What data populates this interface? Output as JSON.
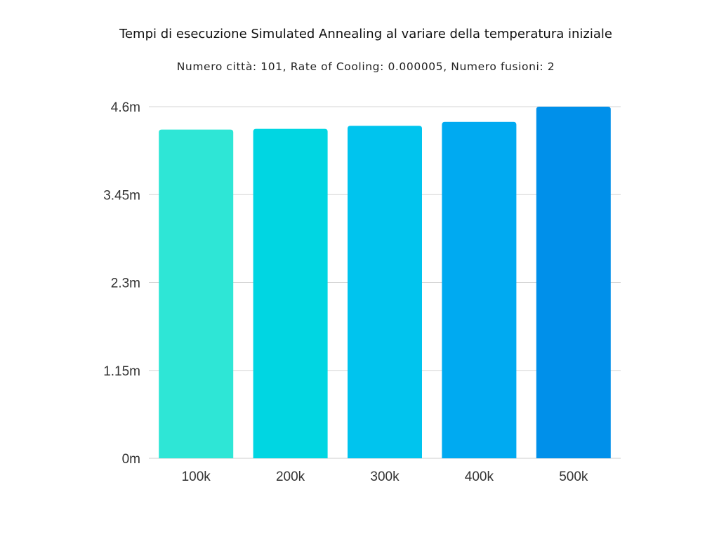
{
  "chart_data": {
    "type": "bar",
    "title": "Tempi di esecuzione Simulated Annealing al variare della temperatura iniziale",
    "subtitle": "Numero città: 101, Rate of Cooling: 0.000005, Numero fusioni: 2",
    "xlabel": "",
    "ylabel": "",
    "categories": [
      "100k",
      "200k",
      "300k",
      "400k",
      "500k"
    ],
    "values": [
      4.3,
      4.31,
      4.35,
      4.4,
      4.6
    ],
    "unit": "m",
    "ylim": [
      0,
      4.6
    ],
    "yticks": [
      0,
      1.15,
      2.3,
      3.45,
      4.6
    ],
    "ytick_labels": [
      "0m",
      "1.15m",
      "2.3m",
      "3.45m",
      "4.6m"
    ],
    "grid": true,
    "legend": "none",
    "colors": [
      "#2ee6d6",
      "#00d6e2",
      "#00c4ee",
      "#00aaf1",
      "#0090ea"
    ]
  }
}
